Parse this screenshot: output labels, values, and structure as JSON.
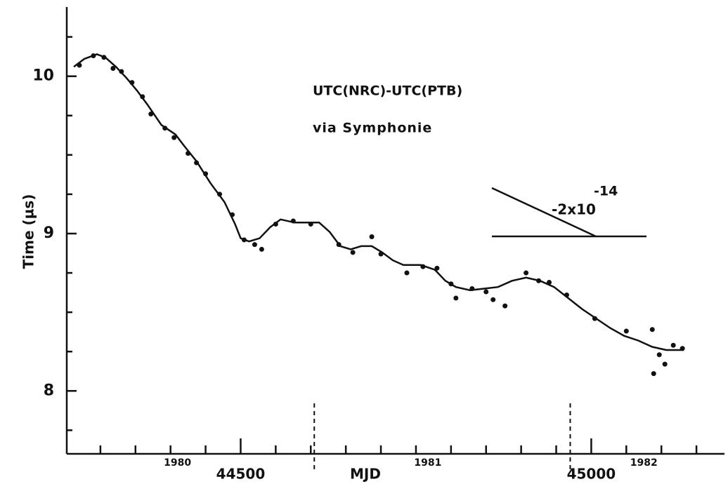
{
  "chart_data": {
    "type": "scatter_line",
    "ylabel": "Time (µs)",
    "xlabel": "MJD",
    "annotations": [
      "UTC(NRC)-UTC(PTB)",
      "via Symphonie"
    ],
    "slope_label": "-2x10",
    "slope_exponent": "-14",
    "xlim": [
      44252,
      45190
    ],
    "ylim": [
      7.6,
      10.44
    ],
    "yticks": [
      8,
      9,
      10
    ],
    "yminor_ticks": [
      7.75,
      8.25,
      8.5,
      8.75,
      9.25,
      9.5,
      9.75,
      10.25
    ],
    "xticks": [
      44500,
      45000
    ],
    "xminor_ticks": [
      44300,
      44350,
      44400,
      44450,
      44550,
      44600,
      44650,
      44700,
      44750,
      44800,
      44850,
      44900,
      44950,
      45050,
      45100,
      45150
    ],
    "year_labels": [
      {
        "label": "1980",
        "x": 44410
      },
      {
        "label": "1981",
        "x": 44767
      },
      {
        "label": "1982",
        "x": 45075
      }
    ],
    "year_boundaries": [
      44605,
      44970
    ],
    "color": "#111111",
    "line": {
      "x": [
        44262,
        44277,
        44295,
        44307,
        44322,
        44337,
        44352,
        44367,
        44387,
        44407,
        44419,
        44437,
        44457,
        44477,
        44492,
        44500,
        44512,
        44527,
        44542,
        44557,
        44577,
        44597,
        44612,
        44627,
        44642,
        44657,
        44672,
        44687,
        44702,
        44717,
        44732,
        44757,
        44777,
        44792,
        44807,
        44827,
        44847,
        44867,
        44887,
        44907,
        44927,
        44947,
        44967,
        44987,
        45007,
        45027,
        45047,
        45067,
        45087,
        45107,
        45132
      ],
      "values": [
        10.06,
        10.11,
        10.14,
        10.12,
        10.06,
        9.99,
        9.91,
        9.82,
        9.69,
        9.63,
        9.56,
        9.46,
        9.32,
        9.2,
        9.06,
        8.97,
        8.95,
        8.97,
        9.04,
        9.09,
        9.07,
        9.07,
        9.07,
        9.01,
        8.92,
        8.9,
        8.92,
        8.92,
        8.88,
        8.83,
        8.8,
        8.8,
        8.77,
        8.7,
        8.66,
        8.64,
        8.65,
        8.66,
        8.7,
        8.72,
        8.7,
        8.66,
        8.59,
        8.52,
        8.46,
        8.4,
        8.35,
        8.32,
        8.28,
        8.26,
        8.26
      ]
    },
    "points": {
      "x": [
        44270,
        44290,
        44305,
        44318,
        44330,
        44345,
        44360,
        44372,
        44392,
        44405,
        44425,
        44437,
        44450,
        44470,
        44488,
        44505,
        44520,
        44530,
        44550,
        44575,
        44600,
        44640,
        44660,
        44687,
        44700,
        44737,
        44760,
        44780,
        44800,
        44807,
        44830,
        44850,
        44860,
        44877,
        44907,
        44925,
        44940,
        44965,
        45005,
        45050,
        45087,
        45089,
        45097,
        45105,
        45117,
        45130
      ],
      "values": [
        10.07,
        10.13,
        10.12,
        10.05,
        10.03,
        9.96,
        9.87,
        9.76,
        9.67,
        9.61,
        9.51,
        9.45,
        9.38,
        9.25,
        9.12,
        8.96,
        8.93,
        8.9,
        9.06,
        9.08,
        9.06,
        8.93,
        8.88,
        8.98,
        8.87,
        8.75,
        8.79,
        8.78,
        8.68,
        8.59,
        8.65,
        8.63,
        8.58,
        8.54,
        8.75,
        8.7,
        8.69,
        8.61,
        8.46,
        8.38,
        8.39,
        8.11,
        8.23,
        8.17,
        8.29,
        8.27
      ]
    }
  }
}
